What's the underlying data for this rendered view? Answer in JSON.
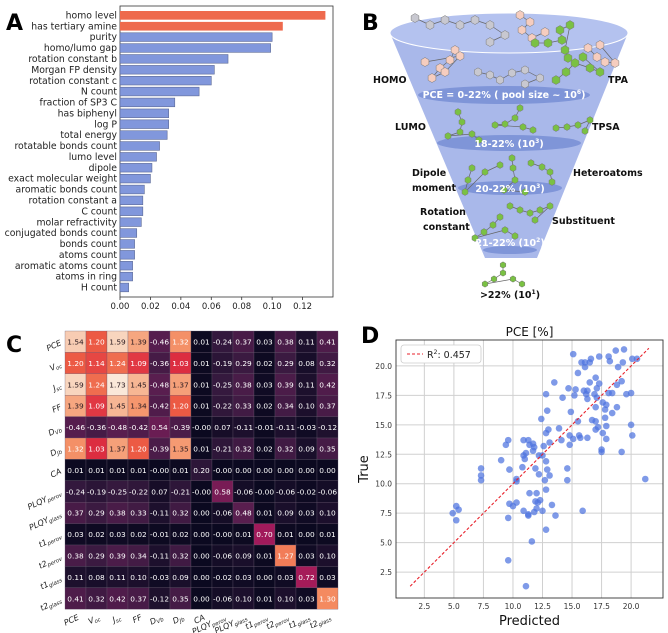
{
  "panel_labels": {
    "a": "A",
    "b": "B",
    "c": "C",
    "d": "D"
  },
  "chart_data": [
    {
      "panel": "A",
      "type": "bar",
      "orientation": "horizontal",
      "categories": [
        "homo level",
        "has tertiary amine",
        "purity",
        "homo/lumo gap",
        "rotation constant b",
        "Morgan FP density",
        "rotation constant c",
        "N count",
        "fraction of SP3 C",
        "has biphenyl",
        "log P",
        "total energy",
        "rotatable bonds count",
        "lumo level",
        "dipole",
        "exact molecular weight",
        "aromatic bonds count",
        "rotation constant a",
        "C count",
        "molar refractivity",
        "conjugated bonds count",
        "bonds count",
        "atoms count",
        "aromatic atoms count",
        "atoms in ring",
        "H count"
      ],
      "values": [
        0.135,
        0.107,
        0.1,
        0.099,
        0.071,
        0.062,
        0.06,
        0.052,
        0.036,
        0.032,
        0.032,
        0.031,
        0.026,
        0.024,
        0.021,
        0.02,
        0.016,
        0.015,
        0.015,
        0.014,
        0.011,
        0.0096,
        0.0096,
        0.0083,
        0.0083,
        0.0057
      ],
      "highlighted_count": 2,
      "colors": {
        "highlight": "#ee6a4d",
        "default": "#8197dc",
        "edge": "#5d6a96"
      },
      "xlim": [
        0,
        0.14
      ],
      "xticks": [
        "0.00",
        "0.02",
        "0.04",
        "0.06",
        "0.08",
        "0.10",
        "0.12"
      ],
      "xtick_values": [
        0,
        0.02,
        0.04,
        0.06,
        0.08,
        0.1,
        0.12
      ],
      "xlabel": "",
      "ylabel": "",
      "title": ""
    },
    {
      "panel": "C",
      "type": "heatmap",
      "labels": [
        {
          "main": "PCE",
          "sub": ""
        },
        {
          "main": "V",
          "sub": "oc"
        },
        {
          "main": "J",
          "sub": "sc"
        },
        {
          "main": "FF",
          "sub": ""
        },
        {
          "main": "D",
          "sub": "Vb"
        },
        {
          "main": "D",
          "sub": "Jb"
        },
        {
          "main": "CA",
          "sub": ""
        },
        {
          "main": "PLQY",
          "sub": "perov"
        },
        {
          "main": "PLQY",
          "sub": "glass"
        },
        {
          "main": "t1",
          "sub": "perov"
        },
        {
          "main": "t2",
          "sub": "perov"
        },
        {
          "main": "t1",
          "sub": "glass"
        },
        {
          "main": "t2",
          "sub": "glass"
        }
      ],
      "values": [
        [
          "1.54",
          "1.20",
          "1.59",
          "1.39",
          "-0.46",
          "1.32",
          "0.01",
          "-0.24",
          "0.37",
          "0.03",
          "0.38",
          "0.11",
          "0.41"
        ],
        [
          "1.20",
          "1.14",
          "1.24",
          "1.09",
          "-0.36",
          "1.03",
          "0.01",
          "-0.19",
          "0.29",
          "0.02",
          "0.29",
          "0.08",
          "0.32"
        ],
        [
          "1.59",
          "1.24",
          "1.73",
          "1.45",
          "-0.48",
          "1.37",
          "0.01",
          "-0.25",
          "0.38",
          "0.03",
          "0.39",
          "0.11",
          "0.42"
        ],
        [
          "1.39",
          "1.09",
          "1.45",
          "1.34",
          "-0.42",
          "1.20",
          "0.01",
          "-0.22",
          "0.33",
          "0.02",
          "0.34",
          "0.10",
          "0.37"
        ],
        [
          "-0.46",
          "-0.36",
          "-0.48",
          "-0.42",
          "0.54",
          "-0.39",
          "-0.00",
          "0.07",
          "-0.11",
          "-0.01",
          "-0.11",
          "-0.03",
          "-0.12"
        ],
        [
          "1.32",
          "1.03",
          "1.37",
          "1.20",
          "-0.39",
          "1.35",
          "0.01",
          "-0.21",
          "0.32",
          "0.02",
          "0.32",
          "0.09",
          "0.35"
        ],
        [
          "0.01",
          "0.01",
          "0.01",
          "0.01",
          "-0.00",
          "0.01",
          "0.20",
          "-0.00",
          "0.00",
          "0.00",
          "0.00",
          "0.00",
          "0.00"
        ],
        [
          "-0.24",
          "-0.19",
          "-0.25",
          "-0.22",
          "0.07",
          "-0.21",
          "-0.00",
          "0.58",
          "-0.06",
          "-0.00",
          "-0.06",
          "-0.02",
          "-0.06"
        ],
        [
          "0.37",
          "0.29",
          "0.38",
          "0.33",
          "-0.11",
          "0.32",
          "0.00",
          "-0.06",
          "0.48",
          "0.01",
          "0.09",
          "0.03",
          "0.10"
        ],
        [
          "0.03",
          "0.02",
          "0.03",
          "0.02",
          "-0.01",
          "0.02",
          "0.00",
          "-0.00",
          "0.01",
          "0.70",
          "0.01",
          "0.00",
          "0.01"
        ],
        [
          "0.38",
          "0.29",
          "0.39",
          "0.34",
          "-0.11",
          "0.32",
          "0.00",
          "-0.06",
          "0.09",
          "0.01",
          "1.27",
          "0.03",
          "0.10"
        ],
        [
          "0.11",
          "0.08",
          "0.11",
          "0.10",
          "-0.03",
          "0.09",
          "0.00",
          "-0.02",
          "0.03",
          "0.00",
          "0.03",
          "0.72",
          "0.03"
        ],
        [
          "0.41",
          "0.32",
          "0.42",
          "0.37",
          "-0.12",
          "0.35",
          "0.00",
          "-0.06",
          "0.10",
          "0.01",
          "0.10",
          "0.03",
          "1.30"
        ]
      ],
      "colormap": "rocket"
    },
    {
      "panel": "D",
      "type": "scatter",
      "title": "PCE [%]",
      "xlabel": "Predicted",
      "ylabel": "True",
      "xlim": [
        0.1,
        22.7
      ],
      "ylim": [
        0.3,
        22.2
      ],
      "xticks": [
        "2.5",
        "5.0",
        "7.5",
        "10.0",
        "12.5",
        "15.0",
        "17.5",
        "20.0"
      ],
      "yticks": [
        "2.5",
        "5.0",
        "7.5",
        "10.0",
        "12.5",
        "15.0",
        "17.5",
        "20.0"
      ],
      "grid": true,
      "legend": {
        "label": "R",
        "sup": "2",
        "value": ": 0.457",
        "placement": "top-left"
      },
      "fit_line": [
        [
          1.3,
          1.3
        ],
        [
          21.5,
          21.5
        ]
      ],
      "colors": {
        "points": "#4e73df",
        "line": "#e8212b"
      },
      "points": [
        [
          4.9,
          7.5
        ],
        [
          5.2,
          8.1
        ],
        [
          5.4,
          7.8
        ],
        [
          5.2,
          6.9
        ],
        [
          7.3,
          11.3
        ],
        [
          7.3,
          10.7
        ],
        [
          7.3,
          10.3
        ],
        [
          9.0,
          12.0
        ],
        [
          9.4,
          13.3
        ],
        [
          9.6,
          13.7
        ],
        [
          9.7,
          11.2
        ],
        [
          9.7,
          8.3
        ],
        [
          9.6,
          7.1
        ],
        [
          9.6,
          3.5
        ],
        [
          10.0,
          8.1
        ],
        [
          10.3,
          10.4
        ],
        [
          10.3,
          10.2
        ],
        [
          10.3,
          8.4
        ],
        [
          10.9,
          13.7
        ],
        [
          10.9,
          12.4
        ],
        [
          11.1,
          12.6
        ],
        [
          11.0,
          12.1
        ],
        [
          10.8,
          11.4
        ],
        [
          10.9,
          7.7
        ],
        [
          11.1,
          1.3
        ],
        [
          11.3,
          13.7
        ],
        [
          11.4,
          13.3
        ],
        [
          11.7,
          13.4
        ],
        [
          11.8,
          13.1
        ],
        [
          11.7,
          12.8
        ],
        [
          11.4,
          9.2
        ],
        [
          11.3,
          7.3
        ],
        [
          11.3,
          7.4
        ],
        [
          11.6,
          5.1
        ],
        [
          11.8,
          7.6
        ],
        [
          11.9,
          11.3
        ],
        [
          12.0,
          9.2
        ],
        [
          11.9,
          8.5
        ],
        [
          12.1,
          8.4
        ],
        [
          12.0,
          7.9
        ],
        [
          12.2,
          12.4
        ],
        [
          12.3,
          8.6
        ],
        [
          12.2,
          10.8
        ],
        [
          12.5,
          12.4
        ],
        [
          12.4,
          15.5
        ],
        [
          12.5,
          7.7
        ],
        [
          12.6,
          13.2
        ],
        [
          12.7,
          10.3
        ],
        [
          12.8,
          11.9
        ],
        [
          12.8,
          9.5
        ],
        [
          12.8,
          14.3
        ],
        [
          12.8,
          17.6
        ],
        [
          12.8,
          6.1
        ],
        [
          12.9,
          16.2
        ],
        [
          13.0,
          14.6
        ],
        [
          12.9,
          11.2
        ],
        [
          13.1,
          10.7
        ],
        [
          13.1,
          13.5
        ],
        [
          13.3,
          8.2
        ],
        [
          13.5,
          18.6
        ],
        [
          13.6,
          7.3
        ],
        [
          13.9,
          14.7
        ],
        [
          14.1,
          13.7
        ],
        [
          14.2,
          17.3
        ],
        [
          14.6,
          11.3
        ],
        [
          14.6,
          10.3
        ],
        [
          14.7,
          18.1
        ],
        [
          14.8,
          14.1
        ],
        [
          14.8,
          13.3
        ],
        [
          14.9,
          16.1
        ],
        [
          15.1,
          21.0
        ],
        [
          15.2,
          17.5
        ],
        [
          15.1,
          13.8
        ],
        [
          15.3,
          18.0
        ],
        [
          15.5,
          15.3
        ],
        [
          15.5,
          19.4
        ],
        [
          15.6,
          14.1
        ],
        [
          15.7,
          13.9
        ],
        [
          15.8,
          20.3
        ],
        [
          16.0,
          17.9
        ],
        [
          16.1,
          20.3
        ],
        [
          16.1,
          19.9
        ],
        [
          15.9,
          7.7
        ],
        [
          16.2,
          17.6
        ],
        [
          16.3,
          13.9
        ],
        [
          16.3,
          17.2
        ],
        [
          16.3,
          17.9
        ],
        [
          16.5,
          18.6
        ],
        [
          16.5,
          20.3
        ],
        [
          16.6,
          20.6
        ],
        [
          16.7,
          15.4
        ],
        [
          16.9,
          17.6
        ],
        [
          17.0,
          14.6
        ],
        [
          17.0,
          19.0
        ],
        [
          17.0,
          16.5
        ],
        [
          17.0,
          15.3
        ],
        [
          17.1,
          18.1
        ],
        [
          17.1,
          17.3
        ],
        [
          17.2,
          14.8
        ],
        [
          17.3,
          18.5
        ],
        [
          17.3,
          20.8
        ],
        [
          17.5,
          12.7
        ],
        [
          17.5,
          12.9
        ],
        [
          17.6,
          14.3
        ],
        [
          17.6,
          16.9
        ],
        [
          17.8,
          16.3
        ],
        [
          17.8,
          15.6
        ],
        [
          17.9,
          16.7
        ],
        [
          17.9,
          13.8
        ],
        [
          17.9,
          14.9
        ],
        [
          18.1,
          17.7
        ],
        [
          18.1,
          20.8
        ],
        [
          18.2,
          20.4
        ],
        [
          18.4,
          17.7
        ],
        [
          18.4,
          16.0
        ],
        [
          18.7,
          21.3
        ],
        [
          18.8,
          18.4
        ],
        [
          18.8,
          16.5
        ],
        [
          18.9,
          19.9
        ],
        [
          19.2,
          18.7
        ],
        [
          19.2,
          12.7
        ],
        [
          19.3,
          20.3
        ],
        [
          19.4,
          21.4
        ],
        [
          19.6,
          17.6
        ],
        [
          20.0,
          17.7
        ],
        [
          20.0,
          15.0
        ],
        [
          20.1,
          14.1
        ],
        [
          20.1,
          20.6
        ],
        [
          20.5,
          20.6
        ],
        [
          21.2,
          10.4
        ]
      ]
    }
  ],
  "funnel": {
    "left_labels": [
      "HOMO",
      "LUMO",
      "Dipole",
      "moment",
      "Rotation",
      "constant"
    ],
    "right_labels": [
      "TPA",
      "TPSA",
      "Heteroatoms",
      "Substituent"
    ],
    "stages": [
      {
        "text": "PCE = 0-22%  ( pool size ~ 10",
        "sup": "6",
        "end": ")"
      },
      {
        "text": "18-22% (10",
        "sup": "3",
        "end": ")"
      },
      {
        "text": "20-22% (10",
        "sup": "3",
        "end": ")"
      },
      {
        "text": "21-22% (10",
        "sup": "2",
        "end": ")"
      }
    ],
    "final": {
      "text": ">22% (10",
      "sup": "1",
      "end": ")"
    },
    "colors": {
      "cone": "#a9b8ea",
      "band": "#7f95d8",
      "green": "#7ac143",
      "pink": "#f6cdbf",
      "gray": "#c8c8d0"
    }
  }
}
